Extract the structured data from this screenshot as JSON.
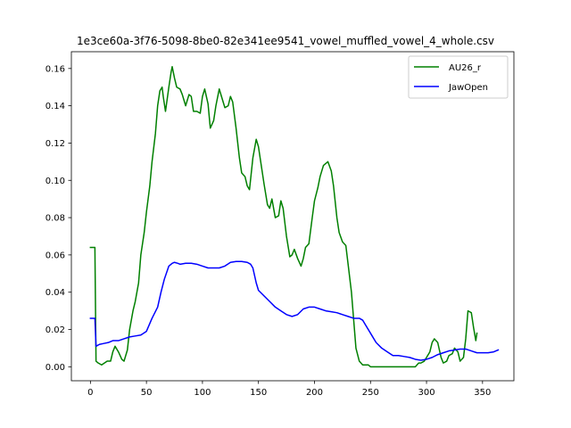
{
  "chart_data": {
    "type": "line",
    "title": "1e3ce60a-3f76-5098-8be0-82e341ee9541_vowel_muffled_vowel_4_whole.csv",
    "xlabel": "",
    "ylabel": "",
    "xlim": [
      -17,
      378
    ],
    "ylim": [
      -0.0075,
      0.169
    ],
    "xticks": [
      0,
      50,
      100,
      150,
      200,
      250,
      300,
      350
    ],
    "yticks": [
      0.0,
      0.02,
      0.04,
      0.06,
      0.08,
      0.1,
      0.12,
      0.14,
      0.16
    ],
    "ytick_labels": [
      "0.00",
      "0.02",
      "0.04",
      "0.06",
      "0.08",
      "0.10",
      "0.12",
      "0.14",
      "0.16"
    ],
    "grid": false,
    "legend_position": "top-right",
    "series": [
      {
        "name": "AU26_r",
        "color": "#008000",
        "x": [
          0,
          4,
          5,
          7,
          10,
          15,
          18,
          20,
          22,
          25,
          28,
          30,
          33,
          35,
          38,
          40,
          43,
          45,
          48,
          50,
          53,
          55,
          58,
          60,
          62,
          64,
          65,
          67,
          70,
          72,
          73,
          75,
          77,
          80,
          82,
          85,
          88,
          90,
          92,
          95,
          98,
          100,
          102,
          105,
          107,
          110,
          112,
          115,
          118,
          120,
          123,
          125,
          127,
          130,
          133,
          135,
          138,
          140,
          142,
          145,
          148,
          150,
          152,
          155,
          158,
          160,
          162,
          165,
          168,
          170,
          172,
          175,
          178,
          180,
          182,
          185,
          188,
          190,
          192,
          195,
          198,
          200,
          203,
          205,
          208,
          210,
          212,
          215,
          217,
          220,
          222,
          225,
          228,
          230,
          233,
          235,
          237,
          240,
          243,
          245,
          248,
          250,
          252,
          255,
          258,
          260,
          265,
          270,
          275,
          280,
          285,
          290,
          293,
          295,
          298,
          300,
          303,
          305,
          307,
          310,
          313,
          315,
          318,
          320,
          323,
          325,
          328,
          330,
          333,
          335,
          337,
          340,
          342,
          344,
          345
        ],
        "y": [
          0.064,
          0.064,
          0.003,
          0.002,
          0.001,
          0.003,
          0.003,
          0.008,
          0.011,
          0.008,
          0.004,
          0.003,
          0.009,
          0.02,
          0.03,
          0.035,
          0.045,
          0.06,
          0.072,
          0.083,
          0.097,
          0.11,
          0.125,
          0.14,
          0.148,
          0.15,
          0.145,
          0.137,
          0.15,
          0.158,
          0.161,
          0.155,
          0.15,
          0.149,
          0.146,
          0.14,
          0.146,
          0.145,
          0.137,
          0.137,
          0.136,
          0.145,
          0.149,
          0.141,
          0.128,
          0.132,
          0.14,
          0.149,
          0.143,
          0.139,
          0.14,
          0.145,
          0.142,
          0.128,
          0.112,
          0.104,
          0.102,
          0.097,
          0.095,
          0.112,
          0.122,
          0.118,
          0.11,
          0.098,
          0.087,
          0.085,
          0.09,
          0.08,
          0.081,
          0.089,
          0.085,
          0.07,
          0.059,
          0.06,
          0.063,
          0.058,
          0.054,
          0.058,
          0.064,
          0.066,
          0.08,
          0.089,
          0.096,
          0.102,
          0.108,
          0.109,
          0.11,
          0.105,
          0.097,
          0.08,
          0.072,
          0.067,
          0.065,
          0.055,
          0.04,
          0.025,
          0.01,
          0.003,
          0.001,
          0.001,
          0.001,
          0.0,
          0.0,
          0.0,
          0.0,
          0.0,
          0.0,
          0.0,
          0.0,
          0.0,
          0.0,
          0.0,
          0.002,
          0.002,
          0.003,
          0.005,
          0.008,
          0.013,
          0.015,
          0.013,
          0.005,
          0.002,
          0.003,
          0.006,
          0.007,
          0.01,
          0.008,
          0.003,
          0.005,
          0.015,
          0.03,
          0.029,
          0.021,
          0.014,
          0.018
        ],
        "x_end": 345
      },
      {
        "name": "JawOpen",
        "color": "#0000ff",
        "x": [
          0,
          4,
          5,
          8,
          12,
          16,
          20,
          25,
          30,
          35,
          40,
          45,
          50,
          55,
          60,
          63,
          66,
          70,
          73,
          75,
          78,
          80,
          85,
          90,
          95,
          100,
          105,
          110,
          115,
          120,
          125,
          130,
          135,
          140,
          143,
          145,
          148,
          150,
          155,
          160,
          165,
          170,
          175,
          180,
          185,
          190,
          195,
          200,
          205,
          210,
          215,
          220,
          225,
          230,
          235,
          240,
          243,
          245,
          250,
          255,
          260,
          265,
          270,
          275,
          280,
          285,
          290,
          295,
          300,
          305,
          310,
          315,
          320,
          325,
          330,
          335,
          340,
          345,
          350,
          355,
          360,
          364
        ],
        "y": [
          0.026,
          0.026,
          0.011,
          0.012,
          0.0125,
          0.013,
          0.014,
          0.014,
          0.015,
          0.016,
          0.0165,
          0.017,
          0.019,
          0.026,
          0.032,
          0.04,
          0.047,
          0.054,
          0.0555,
          0.056,
          0.0555,
          0.055,
          0.0555,
          0.0555,
          0.055,
          0.054,
          0.053,
          0.053,
          0.053,
          0.054,
          0.056,
          0.0565,
          0.0565,
          0.056,
          0.055,
          0.053,
          0.045,
          0.041,
          0.038,
          0.035,
          0.032,
          0.03,
          0.028,
          0.027,
          0.028,
          0.031,
          0.032,
          0.032,
          0.031,
          0.03,
          0.0295,
          0.029,
          0.028,
          0.027,
          0.026,
          0.026,
          0.025,
          0.023,
          0.018,
          0.013,
          0.01,
          0.008,
          0.006,
          0.006,
          0.0055,
          0.005,
          0.004,
          0.0035,
          0.004,
          0.005,
          0.0065,
          0.0075,
          0.0085,
          0.009,
          0.0095,
          0.0095,
          0.0085,
          0.0075,
          0.0075,
          0.0075,
          0.008,
          0.009
        ]
      }
    ]
  }
}
